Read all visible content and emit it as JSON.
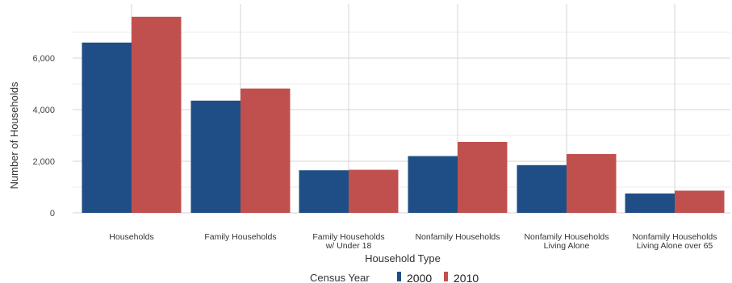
{
  "chart_data": {
    "type": "bar",
    "title": "",
    "xlabel": "Household Type",
    "ylabel": "Number of Households",
    "categories": [
      [
        "Households"
      ],
      [
        "Family Households"
      ],
      [
        "Family Households",
        "w/ Under 18"
      ],
      [
        "Nonfamily Households"
      ],
      [
        "Nonfamily Households",
        "Living Alone"
      ],
      [
        "Nonfamily Households",
        "Living Alone over 65"
      ]
    ],
    "series": [
      {
        "name": "2000",
        "color": "#1f4e86",
        "values": [
          6600,
          4350,
          1650,
          2200,
          1850,
          750
        ]
      },
      {
        "name": "2010",
        "color": "#c0504d",
        "values": [
          7600,
          4820,
          1670,
          2750,
          2280,
          860
        ]
      }
    ],
    "ylim": [
      0,
      7800
    ],
    "yticks": [
      0,
      2000,
      4000,
      6000
    ],
    "ytick_labels": [
      "0",
      "2,000",
      "4,000",
      "6,000"
    ],
    "grid": true,
    "legend": {
      "title": "Census Year",
      "placement": "bottom"
    }
  }
}
